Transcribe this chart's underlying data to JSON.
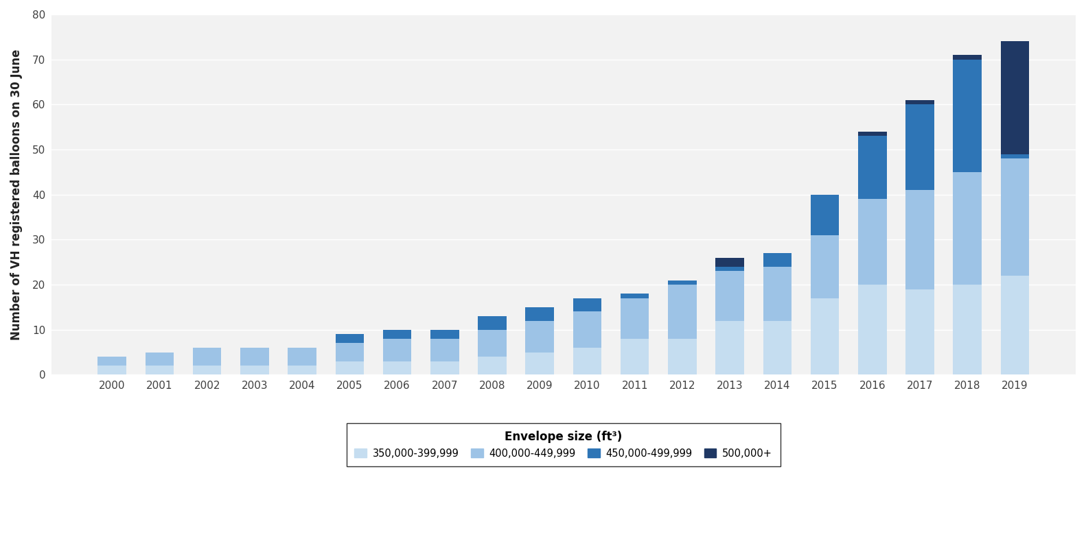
{
  "years": [
    2000,
    2001,
    2002,
    2003,
    2004,
    2005,
    2006,
    2007,
    2008,
    2009,
    2010,
    2011,
    2012,
    2013,
    2014,
    2015,
    2016,
    2017,
    2018,
    2019
  ],
  "series": {
    "350000_399999": [
      2,
      2,
      2,
      2,
      2,
      3,
      3,
      3,
      4,
      5,
      6,
      8,
      8,
      12,
      12,
      17,
      20,
      19,
      20,
      22
    ],
    "400000_449999": [
      2,
      3,
      4,
      4,
      4,
      4,
      5,
      5,
      6,
      7,
      8,
      9,
      12,
      11,
      12,
      14,
      19,
      22,
      25,
      26
    ],
    "450000_499999": [
      0,
      0,
      0,
      0,
      0,
      2,
      2,
      2,
      3,
      3,
      3,
      1,
      1,
      1,
      3,
      9,
      14,
      19,
      25,
      1
    ],
    "500000_plus": [
      0,
      0,
      0,
      0,
      0,
      0,
      0,
      0,
      0,
      0,
      0,
      0,
      0,
      2,
      0,
      0,
      1,
      1,
      1,
      25
    ]
  },
  "colors": {
    "350000_399999": "#c5ddf0",
    "400000_449999": "#9dc3e6",
    "450000_499999": "#2e75b6",
    "500000_plus": "#1f3864"
  },
  "legend_labels": {
    "350000_399999": "350,000-399,999",
    "400000_449999": "400,000-449,999",
    "450000_499999": "450,000-499,999",
    "500000_plus": "500,000+"
  },
  "legend_title": "Envelope size (ft³)",
  "ylabel": "Number of VH registered balloons on 30 June",
  "ylim": [
    0,
    80
  ],
  "yticks": [
    0,
    10,
    20,
    30,
    40,
    50,
    60,
    70,
    80
  ],
  "background_color": "#ffffff",
  "plot_bg_color": "#f2f2f2",
  "grid_color": "#ffffff"
}
